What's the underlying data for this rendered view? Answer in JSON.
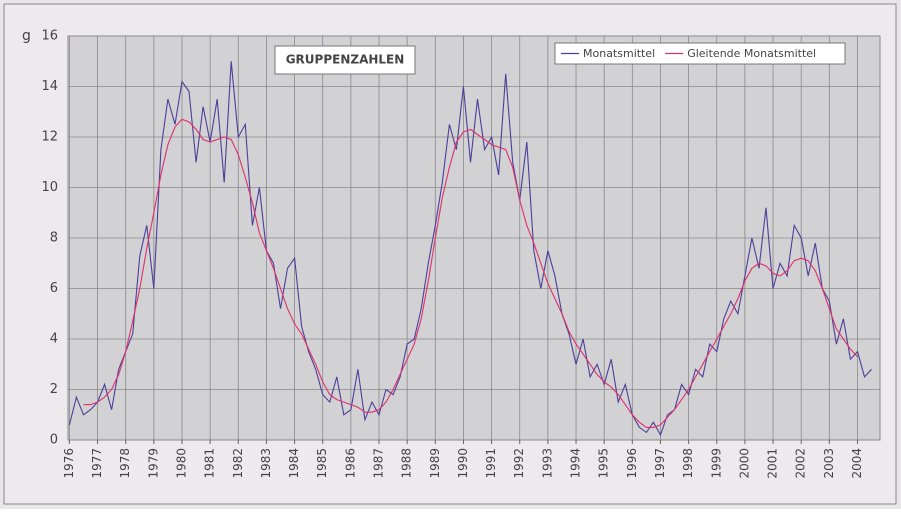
{
  "chart_data": {
    "type": "line",
    "title": "GRUPPENZAHLEN",
    "ylabel": "g",
    "x": [
      1976,
      1976.25,
      1976.5,
      1976.75,
      1977,
      1977.25,
      1977.5,
      1977.75,
      1978,
      1978.25,
      1978.5,
      1978.75,
      1979,
      1979.25,
      1979.5,
      1979.75,
      1980,
      1980.25,
      1980.5,
      1980.75,
      1981,
      1981.25,
      1981.5,
      1981.75,
      1982,
      1982.25,
      1982.5,
      1982.75,
      1983,
      1983.25,
      1983.5,
      1983.75,
      1984,
      1984.25,
      1984.5,
      1984.75,
      1985,
      1985.25,
      1985.5,
      1985.75,
      1986,
      1986.25,
      1986.5,
      1986.75,
      1987,
      1987.25,
      1987.5,
      1987.75,
      1988,
      1988.25,
      1988.5,
      1988.75,
      1989,
      1989.25,
      1989.5,
      1989.75,
      1990,
      1990.25,
      1990.5,
      1990.75,
      1991,
      1991.25,
      1991.5,
      1991.75,
      1992,
      1992.25,
      1992.5,
      1992.75,
      1993,
      1993.25,
      1993.5,
      1993.75,
      1994,
      1994.25,
      1994.5,
      1994.75,
      1995,
      1995.25,
      1995.5,
      1995.75,
      1996,
      1996.25,
      1996.5,
      1996.75,
      1997,
      1997.25,
      1997.5,
      1997.75,
      1998,
      1998.25,
      1998.5,
      1998.75,
      1999,
      1999.25,
      1999.5,
      1999.75,
      2000,
      2000.25,
      2000.5,
      2000.75,
      2001,
      2001.25,
      2001.5,
      2001.75,
      2002,
      2002.25,
      2002.5,
      2002.75,
      2003,
      2003.25,
      2003.5,
      2003.75,
      2004,
      2004.25,
      2004.5
    ],
    "series": [
      {
        "name": "Monatsmittel",
        "color": "#4b3f9a",
        "values": [
          0.6,
          1.7,
          1.0,
          1.2,
          1.5,
          2.2,
          1.2,
          2.8,
          3.5,
          4.2,
          7.3,
          8.5,
          6.0,
          11.5,
          13.5,
          12.5,
          14.2,
          13.8,
          11.0,
          13.2,
          11.8,
          13.5,
          10.2,
          15.0,
          12.0,
          12.5,
          8.5,
          10.0,
          7.5,
          7.0,
          5.2,
          6.8,
          7.2,
          4.5,
          3.5,
          2.8,
          1.8,
          1.5,
          2.5,
          1.0,
          1.2,
          2.8,
          0.8,
          1.5,
          1.0,
          2.0,
          1.8,
          2.5,
          3.8,
          4.0,
          5.2,
          7.0,
          8.5,
          10.2,
          12.5,
          11.5,
          14.0,
          11.0,
          13.5,
          11.5,
          12.0,
          10.5,
          14.5,
          11.0,
          9.5,
          11.8,
          7.5,
          6.0,
          7.5,
          6.5,
          5.0,
          4.2,
          3.0,
          4.0,
          2.5,
          3.0,
          2.2,
          3.2,
          1.5,
          2.2,
          1.0,
          0.5,
          0.3,
          0.7,
          0.2,
          1.0,
          1.2,
          2.2,
          1.8,
          2.8,
          2.5,
          3.8,
          3.5,
          4.8,
          5.5,
          5.0,
          6.5,
          8.0,
          6.8,
          9.2,
          6.0,
          7.0,
          6.5,
          8.5,
          8.0,
          6.5,
          7.8,
          6.0,
          5.5,
          3.8,
          4.8,
          3.2,
          3.5,
          2.5,
          2.8
        ]
      },
      {
        "name": "Gleitende Monatsmittel",
        "color": "#e0306a",
        "values": [
          null,
          null,
          1.4,
          1.4,
          1.5,
          1.7,
          2.0,
          2.6,
          3.5,
          4.7,
          6.0,
          7.6,
          9.0,
          10.5,
          11.7,
          12.4,
          12.7,
          12.6,
          12.3,
          11.9,
          11.8,
          11.9,
          12.0,
          11.9,
          11.3,
          10.4,
          9.4,
          8.2,
          7.5,
          6.8,
          6.0,
          5.2,
          4.6,
          4.2,
          3.6,
          3.0,
          2.3,
          1.8,
          1.6,
          1.5,
          1.4,
          1.3,
          1.1,
          1.1,
          1.2,
          1.5,
          2.0,
          2.6,
          3.2,
          3.8,
          4.8,
          6.3,
          8.0,
          9.6,
          10.8,
          11.8,
          12.2,
          12.3,
          12.1,
          11.9,
          11.7,
          11.6,
          11.5,
          10.8,
          9.5,
          8.5,
          7.8,
          7.0,
          6.2,
          5.6,
          5.0,
          4.3,
          3.8,
          3.4,
          3.0,
          2.6,
          2.3,
          2.1,
          1.8,
          1.4,
          1.0,
          0.7,
          0.5,
          0.5,
          0.6,
          0.9,
          1.2,
          1.6,
          2.0,
          2.5,
          3.0,
          3.5,
          4.0,
          4.5,
          5.0,
          5.6,
          6.3,
          6.8,
          7.0,
          6.9,
          6.6,
          6.5,
          6.7,
          7.1,
          7.2,
          7.1,
          6.7,
          6.0,
          5.2,
          4.4,
          4.0,
          3.6,
          3.3,
          null,
          null
        ]
      }
    ],
    "xlim": [
      1975.95,
      2004.8
    ],
    "xticks": [
      1976,
      1977,
      1978,
      1979,
      1980,
      1981,
      1982,
      1983,
      1984,
      1985,
      1986,
      1987,
      1988,
      1989,
      1990,
      1991,
      1992,
      1993,
      1994,
      1995,
      1996,
      1997,
      1998,
      1999,
      2000,
      2001,
      2002,
      2003,
      2004
    ],
    "ylim": [
      0,
      16
    ],
    "yticks": [
      0,
      2,
      4,
      6,
      8,
      10,
      12,
      14,
      16
    ],
    "grid": true,
    "legend": "upper right"
  }
}
